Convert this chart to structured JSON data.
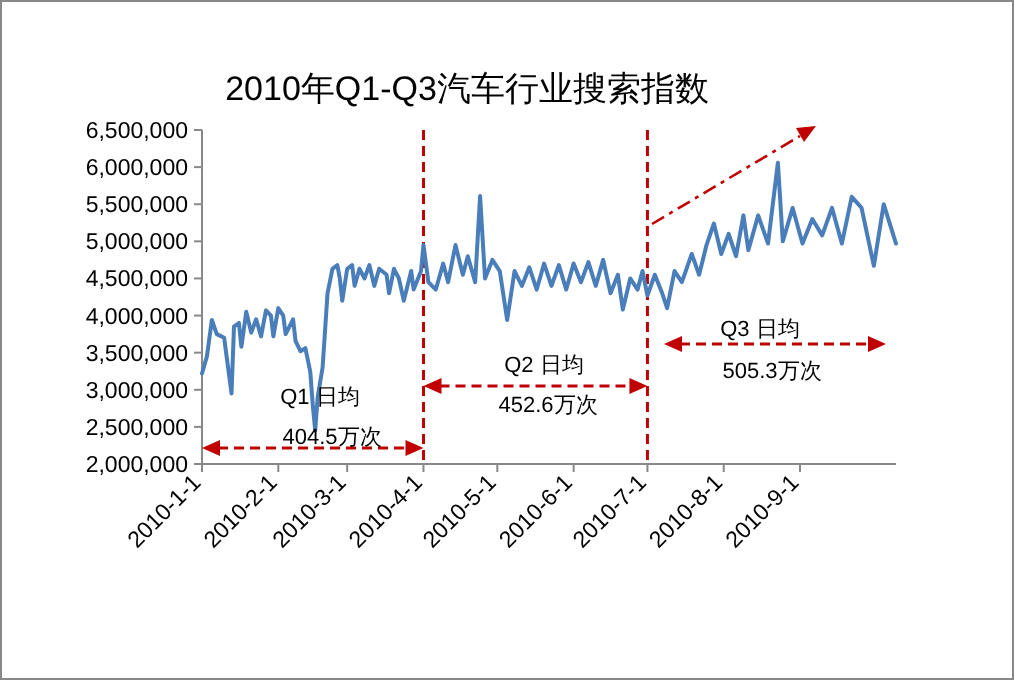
{
  "chart_data": {
    "type": "line",
    "title": "2010年Q1-Q3汽车行业搜索指数",
    "x": [
      "2010-01-01",
      "2010-01-03",
      "2010-01-05",
      "2010-01-07",
      "2010-01-10",
      "2010-01-11",
      "2010-01-13",
      "2010-01-14",
      "2010-01-16",
      "2010-01-17",
      "2010-01-19",
      "2010-01-21",
      "2010-01-23",
      "2010-01-25",
      "2010-01-27",
      "2010-01-29",
      "2010-01-30",
      "2010-02-01",
      "2010-02-03",
      "2010-02-04",
      "2010-02-07",
      "2010-02-08",
      "2010-02-10",
      "2010-02-12",
      "2010-02-14",
      "2010-02-15",
      "2010-02-16",
      "2010-02-17",
      "2010-02-19",
      "2010-02-21",
      "2010-02-23",
      "2010-02-25",
      "2010-02-26",
      "2010-02-27",
      "2010-03-01",
      "2010-03-03",
      "2010-03-04",
      "2010-03-06",
      "2010-03-08",
      "2010-03-10",
      "2010-03-12",
      "2010-03-14",
      "2010-03-17",
      "2010-03-18",
      "2010-03-20",
      "2010-03-22",
      "2010-03-24",
      "2010-03-27",
      "2010-03-28",
      "2010-03-31",
      "2010-04-01",
      "2010-04-03",
      "2010-04-06",
      "2010-04-09",
      "2010-04-11",
      "2010-04-14",
      "2010-04-17",
      "2010-04-19",
      "2010-04-22",
      "2010-04-24",
      "2010-04-26",
      "2010-04-29",
      "2010-05-02",
      "2010-05-05",
      "2010-05-08",
      "2010-05-11",
      "2010-05-14",
      "2010-05-17",
      "2010-05-20",
      "2010-05-23",
      "2010-05-26",
      "2010-05-29",
      "2010-06-01",
      "2010-06-04",
      "2010-06-07",
      "2010-06-10",
      "2010-06-13",
      "2010-06-16",
      "2010-06-19",
      "2010-06-21",
      "2010-06-24",
      "2010-06-27",
      "2010-06-29",
      "2010-07-01",
      "2010-07-04",
      "2010-07-07",
      "2010-07-09",
      "2010-07-12",
      "2010-07-15",
      "2010-07-19",
      "2010-07-22",
      "2010-07-25",
      "2010-07-28",
      "2010-07-31",
      "2010-08-03",
      "2010-08-06",
      "2010-08-09",
      "2010-08-11",
      "2010-08-15",
      "2010-08-19",
      "2010-08-23",
      "2010-08-25",
      "2010-08-29",
      "2010-09-02",
      "2010-09-06",
      "2010-09-10",
      "2010-09-14",
      "2010-09-18",
      "2010-09-22",
      "2010-09-26",
      "2010-10-01",
      "2010-10-05",
      "2010-10-10"
    ],
    "series": [
      {
        "color": "#4a7ebb",
        "values": [
          3220000,
          3450000,
          3940000,
          3750000,
          3700000,
          3450000,
          2950000,
          3850000,
          3900000,
          3580000,
          4050000,
          3770000,
          3950000,
          3720000,
          4070000,
          4000000,
          3720000,
          4100000,
          4000000,
          3750000,
          3950000,
          3660000,
          3520000,
          3560000,
          3240000,
          2800000,
          2450000,
          2900000,
          3300000,
          4300000,
          4630000,
          4680000,
          4500000,
          4200000,
          4630000,
          4680000,
          4400000,
          4630000,
          4500000,
          4680000,
          4400000,
          4630000,
          4550000,
          4300000,
          4630000,
          4500000,
          4200000,
          4600000,
          4350000,
          4600000,
          4950000,
          4450000,
          4350000,
          4700000,
          4450000,
          4950000,
          4550000,
          4800000,
          4450000,
          5610000,
          4500000,
          4750000,
          4600000,
          3940000,
          4600000,
          4400000,
          4650000,
          4350000,
          4700000,
          4400000,
          4680000,
          4350000,
          4700000,
          4450000,
          4720000,
          4400000,
          4750000,
          4300000,
          4550000,
          4080000,
          4500000,
          4350000,
          4600000,
          4270000,
          4550000,
          4300000,
          4100000,
          4600000,
          4450000,
          4830000,
          4550000,
          4950000,
          5240000,
          4830000,
          5100000,
          4800000,
          5350000,
          4880000,
          5350000,
          4970000,
          6060000,
          5000000,
          5450000,
          4970000,
          5300000,
          5080000,
          5450000,
          4970000,
          5600000,
          5450000,
          4670000,
          5500000,
          4970000
        ]
      }
    ],
    "xlim": [
      "2010-01-01",
      "2010-10-10"
    ],
    "xticks": [
      {
        "value": "2010-01-01",
        "label": "2010-1-1"
      },
      {
        "value": "2010-02-01",
        "label": "2010-2-1"
      },
      {
        "value": "2010-03-01",
        "label": "2010-3-1"
      },
      {
        "value": "2010-04-01",
        "label": "2010-4-1"
      },
      {
        "value": "2010-05-01",
        "label": "2010-5-1"
      },
      {
        "value": "2010-06-01",
        "label": "2010-6-1"
      },
      {
        "value": "2010-07-01",
        "label": "2010-7-1"
      },
      {
        "value": "2010-08-01",
        "label": "2010-8-1"
      },
      {
        "value": "2010-09-01",
        "label": "2010-9-1"
      }
    ],
    "ylim": [
      2000000,
      6500000
    ],
    "yticks": [
      {
        "value": 2000000,
        "label": "2,000,000"
      },
      {
        "value": 2500000,
        "label": "2,500,000"
      },
      {
        "value": 3000000,
        "label": "3,000,000"
      },
      {
        "value": 3500000,
        "label": "3,500,000"
      },
      {
        "value": 4000000,
        "label": "4,000,000"
      },
      {
        "value": 4500000,
        "label": "4,500,000"
      },
      {
        "value": 5000000,
        "label": "5,000,000"
      },
      {
        "value": 5500000,
        "label": "5,500,000"
      },
      {
        "value": 6000000,
        "label": "6,000,000"
      },
      {
        "value": 6500000,
        "label": "6,500,000"
      }
    ],
    "ref_lines": [
      {
        "axis": "x",
        "value": "2010-04-01",
        "color": "#c00000",
        "line_style": "dashed"
      },
      {
        "axis": "x",
        "value": "2010-07-01",
        "color": "#c00000",
        "line_style": "dashed"
      }
    ],
    "annotations": [
      "Q1 日均",
      "404.5万次",
      "Q2 日均",
      "452.6万次",
      "Q3 日均",
      "505.3万次"
    ],
    "grid": false,
    "marker": "none",
    "line_style": "solid"
  }
}
